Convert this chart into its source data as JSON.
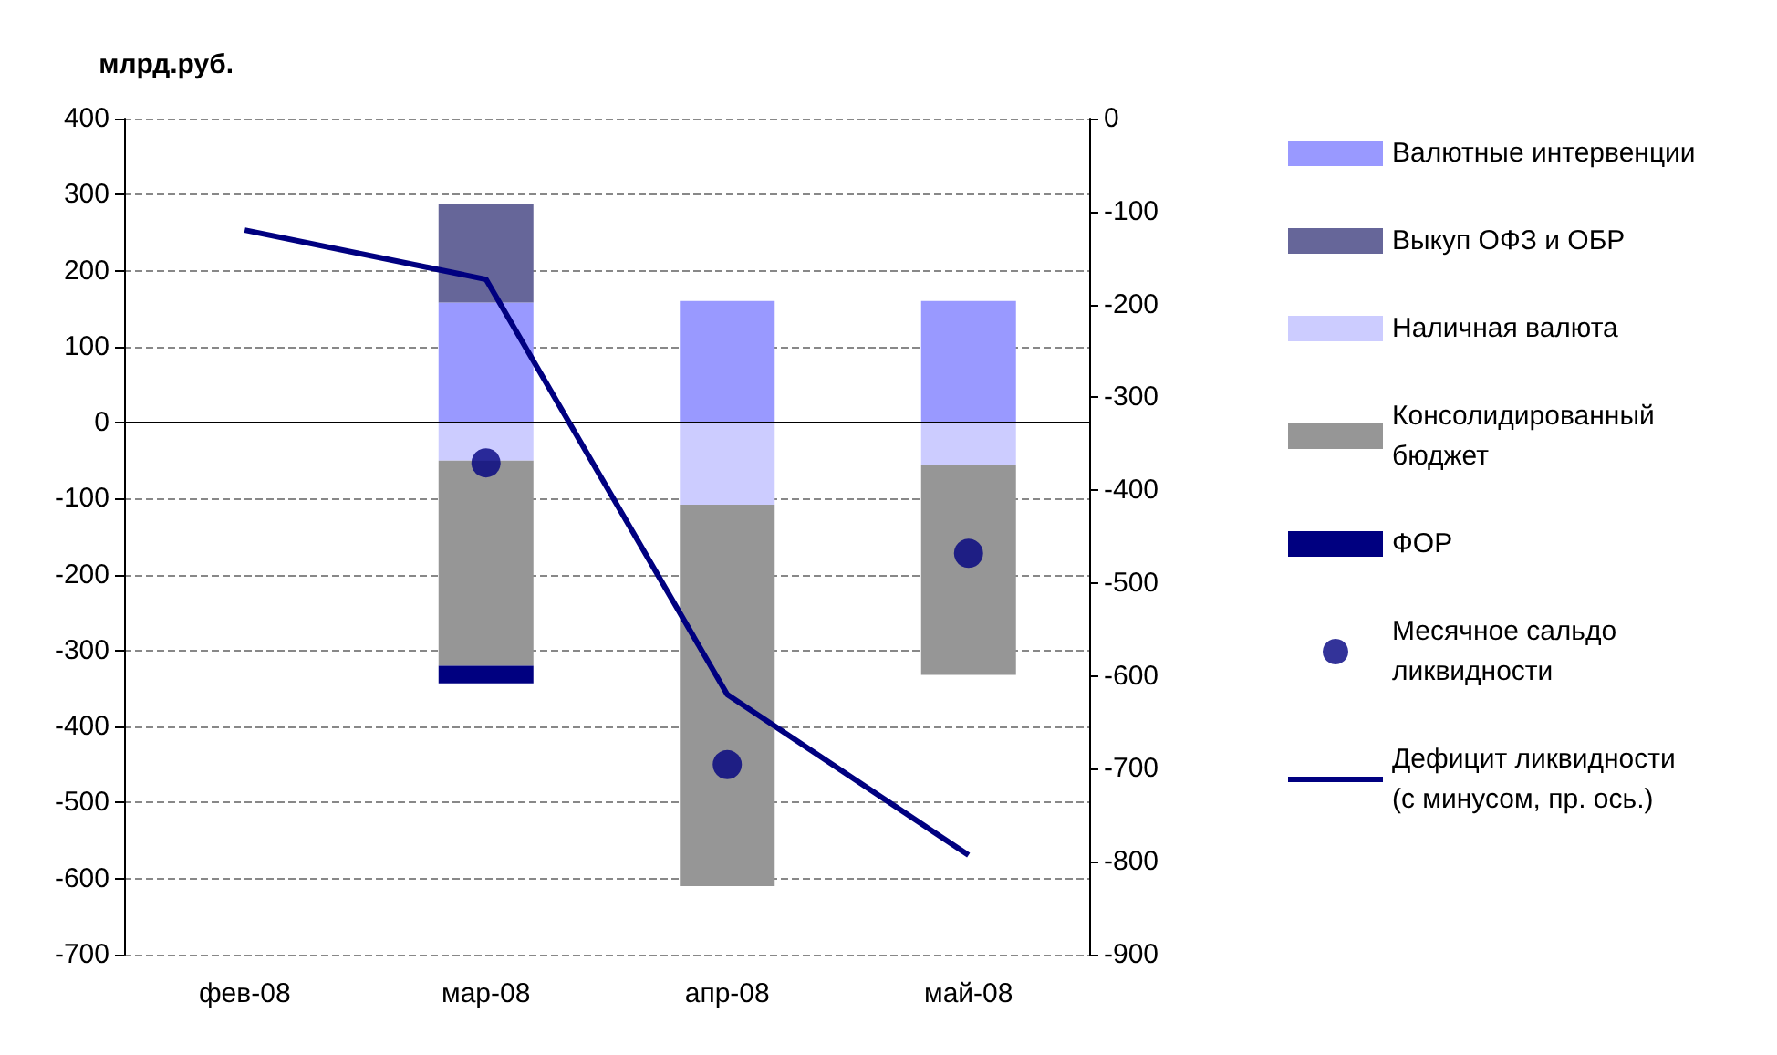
{
  "chart_data": {
    "type": "bar",
    "stacked": true,
    "ylabel": "млрд.руб.",
    "categories": [
      "фев-08",
      "мар-08",
      "апр-08",
      "май-08"
    ],
    "series": [
      {
        "name": "Валютные интервенции",
        "color": "#9999ff",
        "values": [
          null,
          158,
          160,
          160
        ]
      },
      {
        "name": "Выкуп ОФЗ и ОБР",
        "color": "#666699",
        "values": [
          null,
          130,
          null,
          null
        ]
      },
      {
        "name": "Наличная валюта",
        "color": "#ccccff",
        "values": [
          null,
          -50,
          -108,
          -55
        ]
      },
      {
        "name": "Консолидированный\nбюджет",
        "color": "#969696",
        "values": [
          null,
          -270,
          -502,
          -277
        ]
      },
      {
        "name": "ФОР",
        "color": "#000080",
        "values": [
          null,
          -23,
          null,
          null
        ]
      },
      {
        "name": "Месячное сальдо\nликвидности",
        "type": "scatter",
        "marker": "circle",
        "color": "#000080",
        "values": [
          null,
          -53,
          -450,
          -172
        ]
      },
      {
        "name": "Дефицит ликвидности\n(с минусом, пр. ось.)",
        "type": "line",
        "marker": "none",
        "axis": "y2",
        "color": "#000080",
        "values": [
          -120,
          -173,
          -620,
          -793
        ]
      }
    ],
    "ylim": [
      -700,
      400
    ],
    "yticks": [
      -700,
      -600,
      -500,
      -400,
      -300,
      -200,
      -100,
      0,
      100,
      200,
      300,
      400
    ],
    "y2lim": [
      -900,
      0
    ],
    "y2ticks": [
      -900,
      -800,
      -700,
      -600,
      -500,
      -400,
      -300,
      -200,
      -100,
      0
    ],
    "ref_lines": [
      {
        "axis": "y",
        "value": 0,
        "label": null,
        "color": "#000000",
        "line_style": "solid"
      }
    ],
    "grid": "y",
    "legend": "right"
  }
}
